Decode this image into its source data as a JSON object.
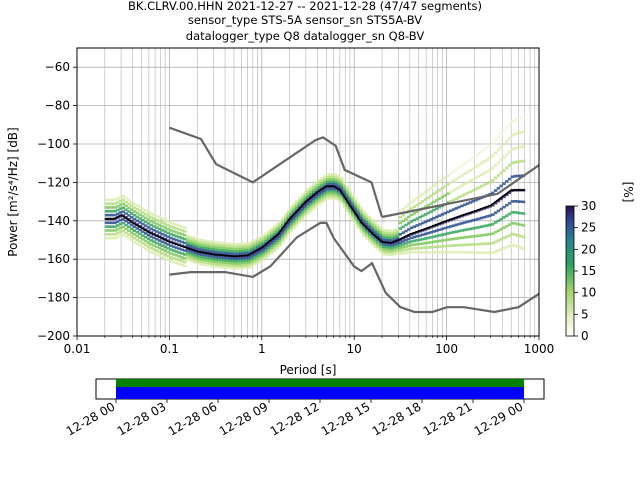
{
  "title_lines": [
    "BK.CLRV.00.HHN   2021-12-27 -- 2021-12-28  (47/47 segments)",
    "sensor_type STS-5A sensor_sn STS5A-BV",
    "datalogger_type Q8 datalogger_sn Q8-BV"
  ],
  "chart_data": {
    "type": "heatmap",
    "xlabel": "Period [s]",
    "ylabel": "Power [m²/s⁴/Hz] [dB]",
    "xscale": "log",
    "xlim": [
      0.01,
      1000
    ],
    "ylim": [
      -200,
      -50
    ],
    "xticks": [
      0.01,
      0.1,
      1,
      10,
      100,
      1000
    ],
    "xtick_labels": [
      "0.01",
      "0.1",
      "1",
      "10",
      "100",
      "1000"
    ],
    "yticks": [
      -200,
      -180,
      -160,
      -140,
      -120,
      -100,
      -80,
      -60
    ],
    "ytick_labels": [
      "−200",
      "−180",
      "−160",
      "−140",
      "−120",
      "−100",
      "−80",
      "−60"
    ],
    "grid": true,
    "noise_models": {
      "high": {
        "period": [
          0.1,
          0.22,
          0.32,
          0.8,
          3.8,
          4.6,
          6.3,
          7.9,
          15.4,
          20
        ],
        "power": [
          -91.5,
          -97.4,
          -110.5,
          -120,
          -98,
          -96.5,
          -101,
          -113.5,
          -120,
          -138
        ]
      },
      "high_tail": {
        "period": [
          20,
          354.8,
          1000
        ],
        "power": [
          -138,
          -126,
          -111
        ]
      },
      "low": {
        "period": [
          0.1,
          0.17,
          0.4,
          0.8,
          1.24,
          2.4,
          4.3,
          5.0,
          6.0,
          10.0,
          12.0,
          15.6,
          21.9,
          31.6,
          45,
          70,
          101,
          154,
          328,
          600,
          1000
        ],
        "power": [
          -168,
          -166.7,
          -166.7,
          -169.2,
          -163.7,
          -148.6,
          -141.1,
          -141.1,
          -149,
          -163.8,
          -166.2,
          -162.1,
          -177.5,
          -185,
          -187.5,
          -187.5,
          -185,
          -185,
          -187.5,
          -185,
          -178
        ]
      }
    },
    "mode_curve": {
      "period": [
        0.02,
        0.025,
        0.03,
        0.04,
        0.06,
        0.1,
        0.2,
        0.3,
        0.5,
        0.7,
        1,
        1.5,
        2,
        3,
        4,
        5,
        6,
        7,
        9,
        12,
        16,
        20,
        25,
        30,
        40,
        60,
        100,
        150,
        200,
        300,
        500,
        700
      ],
      "power": [
        -139,
        -139,
        -137,
        -141,
        -146,
        -151,
        -156,
        -157.5,
        -158.5,
        -158,
        -154,
        -147,
        -139,
        -130,
        -125,
        -122,
        -122,
        -124,
        -132,
        -141,
        -147,
        -151,
        -151.5,
        -150,
        -147,
        -144,
        -140,
        -137,
        -135,
        -132,
        -124,
        -124
      ]
    },
    "colorbar": {
      "label": "[%]",
      "min": 0,
      "max": 30,
      "ticks": [
        0,
        5,
        10,
        15,
        20,
        25,
        30
      ],
      "tick_labels": [
        "0",
        "5",
        "10",
        "15",
        "20",
        "25",
        "30"
      ]
    }
  },
  "coverage": {
    "tick_labels": [
      "12-28 00",
      "12-28 03",
      "12-28 06",
      "12-28 09",
      "12-28 12",
      "12-28 15",
      "12-28 18",
      "12-28 21",
      "12-29 00"
    ],
    "colors": {
      "top": "#008000",
      "bottom": "#0000ff"
    }
  },
  "colors": {
    "noise_model": "#666666",
    "mode_line": "#000000",
    "grid": "#b0b0b0"
  }
}
